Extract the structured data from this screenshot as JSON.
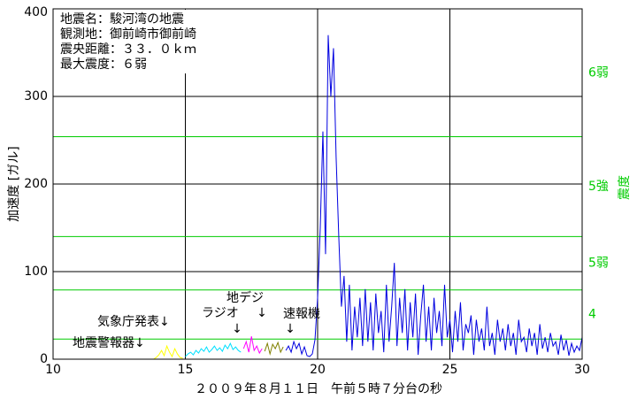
{
  "chart_data": {
    "type": "line",
    "info": [
      "地震名：駿河湾の地震",
      "観測地：御前崎市御前崎",
      "震央距離：３３．０ｋｍ",
      "最大震度：６弱"
    ],
    "xlabel": "２００９年８月１１日　午前５時７分台の秒",
    "ylabel": "加速度 [ガル]",
    "y2label": "震度",
    "xlim": [
      10,
      30
    ],
    "xticks": [
      10,
      15,
      20,
      25,
      30
    ],
    "ylim": [
      0,
      400
    ],
    "yticks": [
      0,
      100,
      200,
      300,
      400
    ],
    "grid": true,
    "intensity_thresholds": [
      {
        "value": 23,
        "label": "4"
      },
      {
        "value": 79,
        "label": "5弱"
      },
      {
        "value": 140,
        "label": "5強"
      },
      {
        "value": 254,
        "label": "6弱"
      }
    ],
    "threshold_color": "#00cc00",
    "annotations": [
      {
        "text": "地震警報器↓"
      },
      {
        "text": "気象庁発表↓"
      },
      {
        "text": "ラジオ",
        "arrow": "↓"
      },
      {
        "text": "地デジ",
        "arrow": "↓"
      },
      {
        "text": "速報機",
        "arrow": "↓"
      }
    ],
    "series": [
      {
        "color": "#ff0000",
        "x": [
          10,
          13.8
        ],
        "values": [
          0,
          0
        ]
      },
      {
        "color": "#ffff00",
        "x": [
          13.8,
          13.9,
          14.0,
          14.1,
          14.2,
          14.3,
          14.4,
          14.5,
          14.6,
          14.7,
          14.8,
          14.9
        ],
        "values": [
          0,
          2,
          5,
          10,
          4,
          15,
          8,
          3,
          12,
          6,
          2,
          1
        ]
      },
      {
        "color": "#00e0ff",
        "x": [
          15.0,
          15.1,
          15.2,
          15.3,
          15.4,
          15.5,
          15.6,
          15.7,
          15.8,
          15.9,
          16.0,
          16.1,
          16.2,
          16.3,
          16.4,
          16.5,
          16.6,
          16.7,
          16.8,
          16.9,
          17.0,
          17.1
        ],
        "values": [
          3,
          6,
          8,
          5,
          10,
          7,
          12,
          9,
          14,
          8,
          11,
          15,
          10,
          13,
          9,
          16,
          12,
          18,
          11,
          14,
          10,
          8
        ]
      },
      {
        "color": "#ff00ff",
        "x": [
          17.2,
          17.3,
          17.4,
          17.5,
          17.6,
          17.7,
          17.8,
          17.9
        ],
        "values": [
          12,
          20,
          8,
          26,
          10,
          15,
          7,
          12
        ]
      },
      {
        "color": "#808000",
        "x": [
          18.0,
          18.1,
          18.2,
          18.3,
          18.4,
          18.5,
          18.6,
          18.7
        ],
        "values": [
          9,
          18,
          6,
          17,
          12,
          19,
          8,
          14
        ]
      },
      {
        "color": "#0000e0",
        "x": [
          18.8,
          18.9,
          19.0,
          19.1,
          19.2,
          19.3,
          19.4,
          19.5,
          19.6,
          19.7,
          19.8,
          19.9,
          20.0,
          20.1,
          20.2,
          20.3,
          20.4,
          20.5,
          20.6,
          20.7,
          20.8,
          20.9,
          21.0,
          21.1,
          21.2,
          21.3,
          21.4,
          21.5,
          21.6,
          21.7,
          21.8,
          21.9,
          22.0,
          22.1,
          22.2,
          22.3,
          22.4,
          22.5,
          22.6,
          22.7,
          22.8,
          22.9,
          23.0,
          23.1,
          23.2,
          23.3,
          23.4,
          23.5,
          23.6,
          23.7,
          23.8,
          23.9,
          24.0,
          24.1,
          24.2,
          24.3,
          24.4,
          24.5,
          24.6,
          24.7,
          24.8,
          24.9,
          25.0,
          25.1,
          25.2,
          25.3,
          25.4,
          25.5,
          25.6,
          25.7,
          25.8,
          25.9,
          26.0,
          26.1,
          26.2,
          26.3,
          26.4,
          26.5,
          26.6,
          26.7,
          26.8,
          26.9,
          27.0,
          27.1,
          27.2,
          27.3,
          27.4,
          27.5,
          27.6,
          27.7,
          27.8,
          27.9,
          28.0,
          28.1,
          28.2,
          28.3,
          28.4,
          28.5,
          28.6,
          28.7,
          28.8,
          28.9,
          29.0,
          29.1,
          29.2,
          29.3,
          29.4,
          29.5,
          29.6,
          29.7,
          29.8,
          29.9,
          30.0
        ],
        "values": [
          10,
          15,
          8,
          20,
          12,
          18,
          6,
          14,
          4,
          3,
          6,
          22,
          70,
          150,
          260,
          120,
          370,
          300,
          355,
          230,
          140,
          60,
          95,
          20,
          85,
          10,
          60,
          25,
          70,
          15,
          80,
          20,
          65,
          10,
          75,
          30,
          55,
          8,
          85,
          20,
          60,
          110,
          15,
          70,
          30,
          80,
          10,
          65,
          25,
          75,
          5,
          50,
          85,
          20,
          60,
          10,
          70,
          30,
          55,
          15,
          85,
          25,
          45,
          8,
          55,
          20,
          65,
          10,
          40,
          30,
          50,
          5,
          45,
          20,
          35,
          10,
          60,
          15,
          30,
          5,
          45,
          20,
          35,
          10,
          40,
          15,
          30,
          5,
          45,
          20,
          25,
          8,
          35,
          15,
          30,
          5,
          40,
          12,
          25,
          8,
          30,
          15,
          20,
          5,
          28,
          10,
          22,
          4,
          18,
          8,
          15,
          10,
          25
        ]
      }
    ]
  }
}
